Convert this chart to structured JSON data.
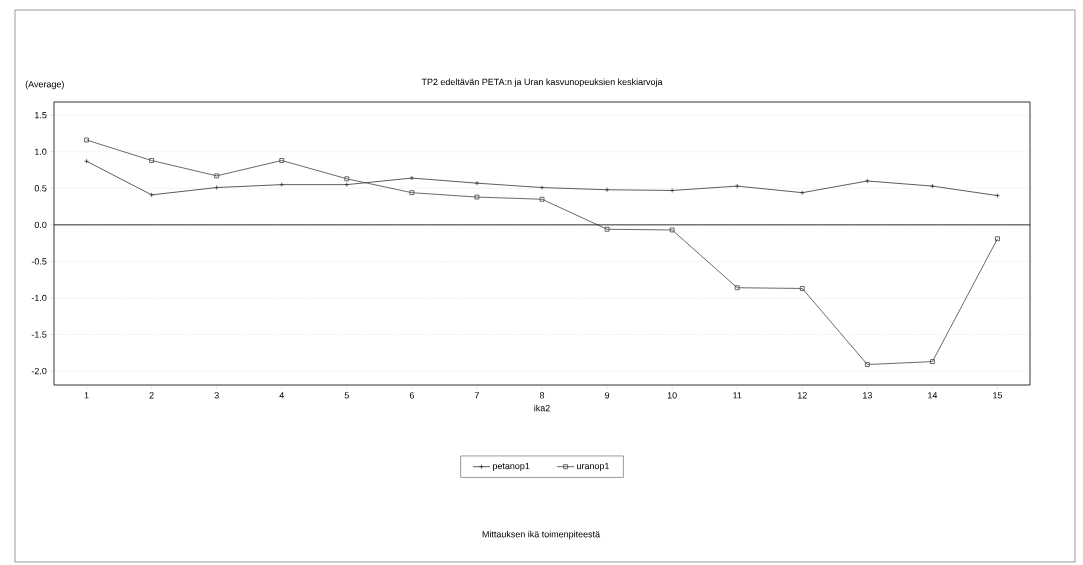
{
  "chart_data": {
    "type": "line",
    "title": "TP2 edeltävän PETA:n ja Uran kasvunopeuksien keskiarvoja",
    "ylabel": "(Average)",
    "xlabel": "ika2",
    "annotations": [
      "Mittauksen ikä toimenpiteestä"
    ],
    "x": [
      1,
      2,
      3,
      4,
      5,
      6,
      7,
      8,
      9,
      10,
      11,
      12,
      13,
      14,
      15
    ],
    "series": [
      {
        "name": "petanop1",
        "color": "#333333",
        "marker": "cross",
        "values": [
          0.87,
          0.41,
          0.51,
          0.55,
          0.55,
          0.64,
          0.57,
          0.51,
          0.48,
          0.47,
          0.53,
          0.44,
          0.6,
          0.53,
          0.4
        ]
      },
      {
        "name": "uranop1",
        "color": "#444444",
        "marker": "square",
        "values": [
          1.16,
          0.88,
          0.67,
          0.88,
          0.63,
          0.44,
          0.38,
          0.35,
          -0.06,
          -0.07,
          -0.86,
          -0.87,
          -1.91,
          -1.87,
          -0.19
        ]
      }
    ],
    "xlim": [
      0.5,
      15.5
    ],
    "xticks": [
      1,
      2,
      3,
      4,
      5,
      6,
      7,
      8,
      9,
      10,
      11,
      12,
      13,
      14,
      15
    ],
    "ylim": [
      -2.19,
      1.68
    ],
    "yticks": [
      {
        "value": -2,
        "label": "-2.0"
      },
      {
        "value": -1.5,
        "label": "-1.5"
      },
      {
        "value": -1,
        "label": "-1.0"
      },
      {
        "value": -0.5,
        "label": "-0.5"
      },
      {
        "value": 0,
        "label": "0.0"
      },
      {
        "value": 0.5,
        "label": "0.5"
      },
      {
        "value": 1,
        "label": "1.0"
      },
      {
        "value": 1.5,
        "label": "1.5"
      }
    ],
    "ref_lines": [
      {
        "axis": "y",
        "value": 0,
        "color": "#000000"
      }
    ],
    "grid": "y",
    "legend": "bottom"
  }
}
